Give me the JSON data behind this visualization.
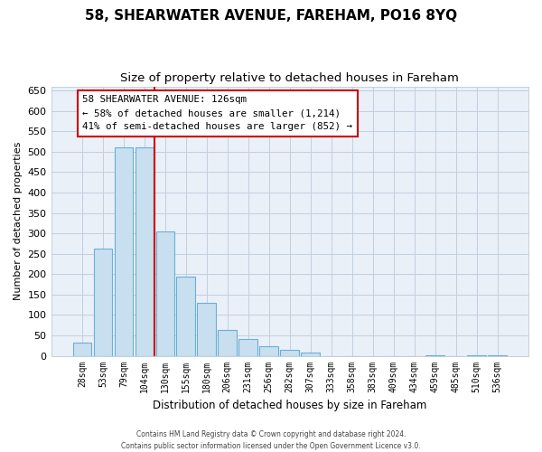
{
  "title": "58, SHEARWATER AVENUE, FAREHAM, PO16 8YQ",
  "subtitle": "Size of property relative to detached houses in Fareham",
  "xlabel": "Distribution of detached houses by size in Fareham",
  "ylabel": "Number of detached properties",
  "bar_labels": [
    "28sqm",
    "53sqm",
    "79sqm",
    "104sqm",
    "130sqm",
    "155sqm",
    "180sqm",
    "206sqm",
    "231sqm",
    "256sqm",
    "282sqm",
    "307sqm",
    "333sqm",
    "358sqm",
    "383sqm",
    "409sqm",
    "434sqm",
    "459sqm",
    "485sqm",
    "510sqm",
    "536sqm"
  ],
  "bar_values": [
    33,
    263,
    510,
    510,
    305,
    195,
    130,
    64,
    40,
    23,
    15,
    8,
    0,
    0,
    0,
    0,
    0,
    2,
    0,
    2,
    2
  ],
  "bar_color": "#c8dff0",
  "bar_edge_color": "#6aafd6",
  "red_line_x": 3.5,
  "red_line_color": "#cc0000",
  "ylim": [
    0,
    660
  ],
  "yticks": [
    0,
    50,
    100,
    150,
    200,
    250,
    300,
    350,
    400,
    450,
    500,
    550,
    600,
    650
  ],
  "annotation_box_text_line1": "58 SHEARWATER AVENUE: 126sqm",
  "annotation_box_text_line2": "← 58% of detached houses are smaller (1,214)",
  "annotation_box_text_line3": "41% of semi-detached houses are larger (852) →",
  "annotation_box_color": "#ffffff",
  "annotation_box_edge_color": "#cc0000",
  "footer_line1": "Contains HM Land Registry data © Crown copyright and database right 2024.",
  "footer_line2": "Contains public sector information licensed under the Open Government Licence v3.0.",
  "background_color": "#ffffff",
  "plot_bg_color": "#eaf0f8",
  "grid_color": "#c0cfe0",
  "title_fontsize": 11,
  "subtitle_fontsize": 9.5,
  "ylabel_fontsize": 8,
  "xlabel_fontsize": 8.5,
  "tick_fontsize": 8,
  "xtick_fontsize": 7
}
